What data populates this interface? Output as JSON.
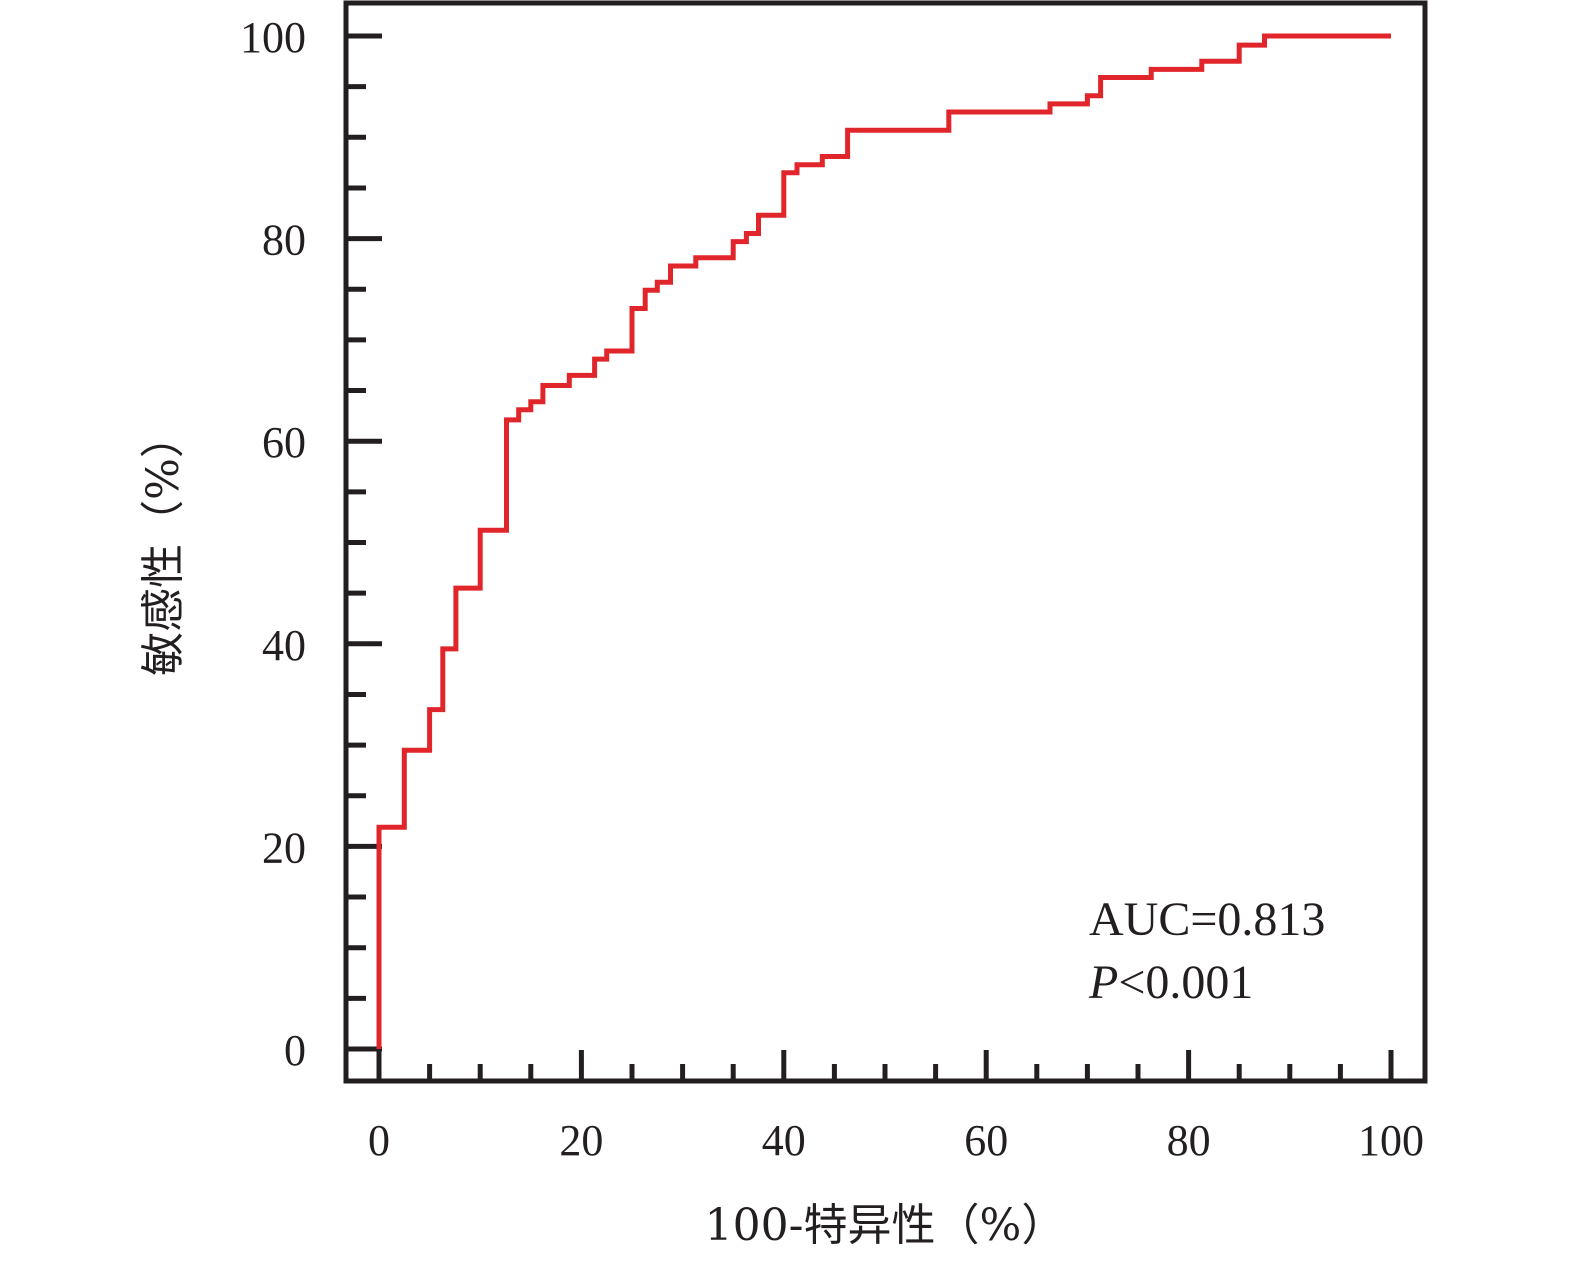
{
  "chart_data": {
    "type": "line",
    "step": true,
    "xlabel": "100-特异性（%）",
    "ylabel": "敏感性（%）",
    "xlim": [
      0,
      100
    ],
    "ylim": [
      0,
      100
    ],
    "x_ticks": [
      0,
      20,
      40,
      60,
      80,
      100
    ],
    "y_ticks": [
      0,
      20,
      40,
      60,
      80,
      100
    ],
    "grid": false,
    "legend": "none",
    "series": [
      {
        "color": "#e0262b",
        "x": [
          0,
          0,
          2.5,
          2.5,
          5,
          5,
          6.3,
          6.3,
          7.6,
          7.6,
          10,
          10,
          12.6,
          12.6,
          13.8,
          13.8,
          15,
          15,
          16.2,
          16.2,
          18.8,
          18.8,
          21.3,
          21.3,
          22.5,
          22.5,
          25,
          25,
          26.3,
          26.3,
          27.5,
          27.5,
          28.8,
          28.8,
          31.3,
          31.3,
          35,
          35,
          36.3,
          36.3,
          37.5,
          37.5,
          40,
          40,
          41.3,
          41.3,
          43.8,
          43.8,
          46.3,
          46.3,
          56.3,
          56.3,
          66.3,
          66.3,
          70,
          70,
          71.3,
          71.3,
          76.3,
          76.3,
          81.3,
          81.3,
          85,
          85,
          87.5,
          87.5,
          100
        ],
        "y": [
          0,
          21.9,
          21.9,
          29.5,
          29.5,
          33.5,
          33.5,
          39.5,
          39.5,
          45.5,
          45.5,
          51.2,
          51.2,
          62.1,
          62.1,
          63.1,
          63.1,
          63.9,
          63.9,
          65.5,
          65.5,
          66.5,
          66.5,
          68.1,
          68.1,
          68.9,
          68.9,
          73.1,
          73.1,
          74.9,
          74.9,
          75.7,
          75.7,
          77.3,
          77.3,
          78.1,
          78.1,
          79.7,
          79.7,
          80.5,
          80.5,
          82.3,
          82.3,
          86.5,
          86.5,
          87.3,
          87.3,
          88.1,
          88.1,
          90.7,
          90.7,
          92.5,
          92.5,
          93.3,
          93.3,
          94.1,
          94.1,
          95.9,
          95.9,
          96.7,
          96.7,
          97.5,
          97.5,
          99.1,
          99.1,
          100,
          100
        ]
      }
    ],
    "annotations": [
      {
        "text": "AUC=0.813",
        "prefix": "",
        "suffix": ""
      },
      {
        "text": "",
        "prefix": "P",
        "suffix": "<0.001"
      }
    ]
  }
}
